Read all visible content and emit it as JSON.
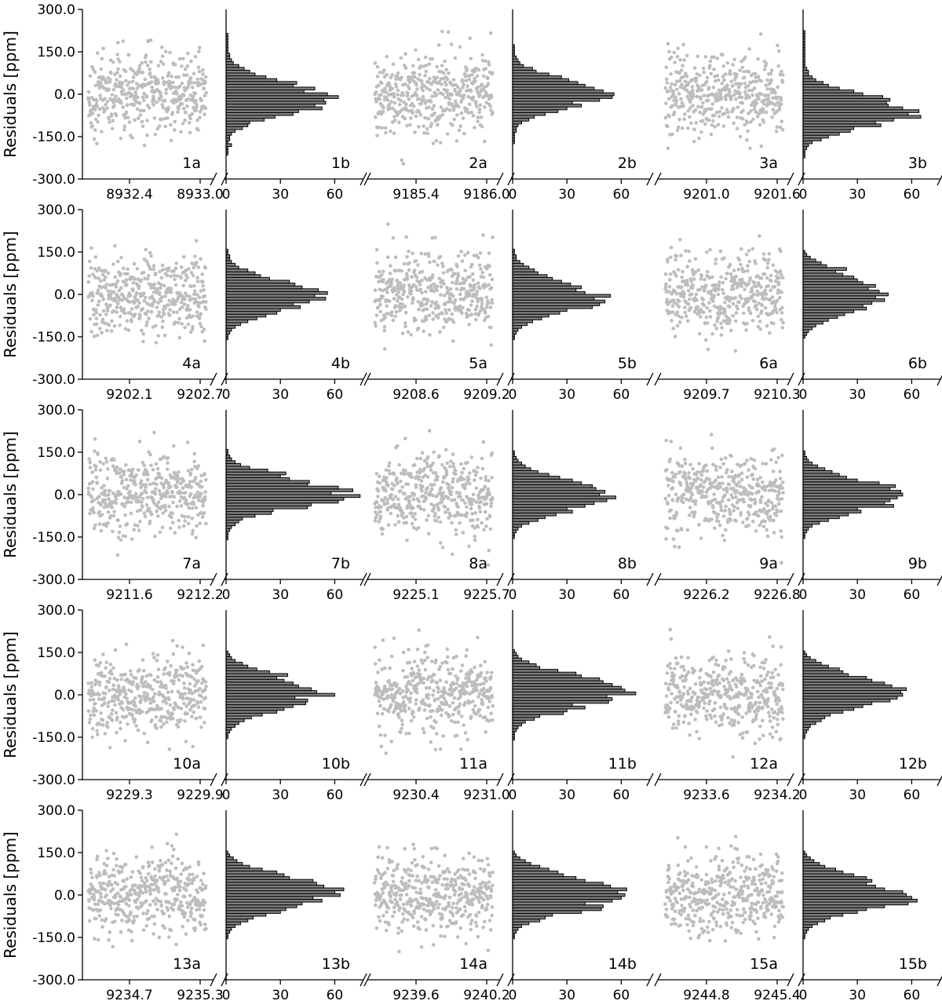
{
  "figure": {
    "ylabel": "Residuals [ppm]",
    "y_tick_labels": [
      "-300.0",
      "-150.0",
      "0.0",
      "150.0",
      "300.0"
    ],
    "hist_tick_labels": [
      "0",
      "30",
      "60"
    ],
    "colors": {
      "scatter": "#bdbdbd",
      "hist_fill": "#808080",
      "hist_edge": "#000000",
      "axis": "#000000"
    }
  },
  "chart_data": [
    {
      "type": "scatter",
      "panel": "1a",
      "ylabel": "Residuals [ppm]",
      "ylim": [
        -300,
        300
      ],
      "xlim": [
        8932.0,
        8933.1
      ],
      "x_tick_labels": [
        "8932.4",
        "8933.0"
      ],
      "x_ticks": [
        8932.4,
        8933.0
      ],
      "points": {
        "count": 420,
        "x_range": [
          8932.05,
          8933.05
        ],
        "std_ppm": 70
      }
    },
    {
      "type": "bar",
      "orientation": "horizontal",
      "panel": "1b",
      "ylim": [
        -300,
        300
      ],
      "xlim": [
        0,
        75
      ],
      "x_tick_labels": [
        "0",
        "30",
        "60"
      ],
      "x_ticks": [
        0,
        30,
        60
      ],
      "bin_width_ppm": 10,
      "counts": [
        1,
        1,
        1,
        3,
        1,
        2,
        2,
        3,
        5,
        9,
        12,
        13,
        21,
        27,
        37,
        40,
        53,
        49,
        55,
        54,
        62,
        56,
        43,
        49,
        37,
        39,
        28,
        22,
        16,
        13,
        10,
        7,
        4,
        3,
        2,
        2,
        1,
        1,
        1,
        1,
        1,
        1,
        1
      ]
    },
    {
      "type": "scatter",
      "panel": "2a",
      "ylim": [
        -300,
        300
      ],
      "xlim": [
        9185.0,
        9186.1
      ],
      "x_tick_labels": [
        "9185.4",
        "9186.0"
      ],
      "x_ticks": [
        9185.4,
        9186.0
      ],
      "points": {
        "count": 420,
        "x_range": [
          9185.05,
          9186.05
        ],
        "std_ppm": 70
      }
    },
    {
      "type": "bar",
      "orientation": "horizontal",
      "panel": "2b",
      "ylim": [
        -300,
        300
      ],
      "xlim": [
        0,
        75
      ],
      "x_tick_labels": [
        "0",
        "30",
        "60"
      ],
      "x_ticks": [
        0,
        30,
        60
      ],
      "bin_width_ppm": 10,
      "counts": [
        1,
        1,
        1,
        1,
        2,
        2,
        3,
        5,
        9,
        12,
        18,
        25,
        30,
        38,
        33,
        48,
        55,
        56,
        50,
        45,
        40,
        36,
        31,
        27,
        20,
        13,
        11,
        6,
        4,
        3,
        2,
        1,
        1,
        1,
        1
      ]
    },
    {
      "type": "scatter",
      "panel": "3a",
      "ylim": [
        -300,
        300
      ],
      "xlim": [
        9200.6,
        9201.7
      ],
      "x_tick_labels": [
        "9201.0",
        "9201.6"
      ],
      "x_ticks": [
        9201.0,
        9201.6
      ],
      "points": {
        "count": 420,
        "x_range": [
          9200.65,
          9201.65
        ],
        "std_ppm": 70
      }
    },
    {
      "type": "bar",
      "orientation": "horizontal",
      "panel": "3b",
      "ylim": [
        -300,
        300
      ],
      "xlim": [
        0,
        75
      ],
      "x_tick_labels": [
        "0",
        "30",
        "60"
      ],
      "x_ticks": [
        0,
        30,
        60
      ],
      "bin_width_ppm": 10,
      "counts": [
        1,
        1,
        1,
        2,
        3,
        5,
        10,
        14,
        20,
        26,
        28,
        43,
        40,
        50,
        65,
        58,
        64,
        55,
        47,
        46,
        48,
        44,
        33,
        28,
        20,
        14,
        11,
        7,
        5,
        3,
        3,
        2,
        1,
        1,
        1,
        1,
        1,
        1,
        1,
        1,
        1,
        1,
        1,
        1,
        1
      ]
    },
    {
      "type": "scatter",
      "panel": "4a",
      "ylim": [
        -300,
        300
      ],
      "xlim": [
        9201.7,
        9202.8
      ],
      "x_tick_labels": [
        "9202.1",
        "9202.7"
      ],
      "x_ticks": [
        9202.1,
        9202.7
      ],
      "points": {
        "count": 420,
        "x_range": [
          9201.75,
          9202.75
        ],
        "std_ppm": 70
      }
    },
    {
      "type": "bar",
      "orientation": "horizontal",
      "panel": "4b",
      "ylim": [
        -300,
        300
      ],
      "xlim": [
        0,
        75
      ],
      "x_tick_labels": [
        "0",
        "30",
        "60"
      ],
      "x_ticks": [
        0,
        30,
        60
      ],
      "bin_width_ppm": 10,
      "counts": [
        1,
        1,
        2,
        3,
        5,
        8,
        12,
        17,
        22,
        28,
        30,
        41,
        37,
        46,
        55,
        49,
        56,
        51,
        42,
        38,
        35,
        24,
        19,
        16,
        12,
        7,
        5,
        3,
        2,
        2,
        1,
        1
      ]
    },
    {
      "type": "scatter",
      "panel": "5a",
      "ylim": [
        -300,
        300
      ],
      "xlim": [
        9208.2,
        9209.3
      ],
      "x_tick_labels": [
        "9208.6",
        "9209.2"
      ],
      "x_ticks": [
        9208.6,
        9209.2
      ],
      "points": {
        "count": 420,
        "x_range": [
          9208.25,
          9209.25
        ],
        "std_ppm": 70
      }
    },
    {
      "type": "bar",
      "orientation": "horizontal",
      "panel": "5b",
      "ylim": [
        -300,
        300
      ],
      "xlim": [
        0,
        75
      ],
      "x_tick_labels": [
        "0",
        "30",
        "60"
      ],
      "x_ticks": [
        0,
        30,
        60
      ],
      "bin_width_ppm": 10,
      "counts": [
        1,
        1,
        2,
        3,
        5,
        8,
        11,
        16,
        20,
        26,
        30,
        44,
        48,
        51,
        45,
        54,
        40,
        35,
        38,
        32,
        27,
        22,
        19,
        14,
        12,
        9,
        6,
        4,
        2,
        2,
        1,
        1
      ]
    },
    {
      "type": "scatter",
      "panel": "6a",
      "ylim": [
        -300,
        300
      ],
      "xlim": [
        9209.3,
        9210.4
      ],
      "x_tick_labels": [
        "9209.7",
        "9210.3"
      ],
      "x_ticks": [
        9209.7,
        9210.3
      ],
      "points": {
        "count": 420,
        "x_range": [
          9209.35,
          9210.35
        ],
        "std_ppm": 70
      }
    },
    {
      "type": "bar",
      "orientation": "horizontal",
      "panel": "6b",
      "ylim": [
        -300,
        300
      ],
      "xlim": [
        0,
        75
      ],
      "x_tick_labels": [
        "0",
        "30",
        "60"
      ],
      "x_ticks": [
        0,
        30,
        60
      ],
      "bin_width_ppm": 10,
      "counts": [
        1,
        2,
        3,
        5,
        7,
        11,
        14,
        19,
        23,
        28,
        35,
        33,
        38,
        45,
        40,
        47,
        42,
        36,
        40,
        33,
        30,
        28,
        22,
        18,
        24,
        13,
        10,
        7,
        4,
        2,
        1
      ]
    },
    {
      "type": "scatter",
      "panel": "7a",
      "ylim": [
        -300,
        300
      ],
      "xlim": [
        9211.2,
        9212.3
      ],
      "x_tick_labels": [
        "9211.6",
        "9212.2"
      ],
      "x_ticks": [
        9211.6,
        9212.2
      ],
      "points": {
        "count": 420,
        "x_range": [
          9211.25,
          9212.25
        ],
        "std_ppm": 70
      }
    },
    {
      "type": "bar",
      "orientation": "horizontal",
      "panel": "7b",
      "ylim": [
        -300,
        300
      ],
      "xlim": [
        0,
        75
      ],
      "x_tick_labels": [
        "0",
        "30",
        "60"
      ],
      "x_ticks": [
        0,
        30,
        60
      ],
      "bin_width_ppm": 10,
      "counts": [
        1,
        1,
        1,
        2,
        3,
        5,
        7,
        9,
        16,
        25,
        26,
        45,
        47,
        62,
        65,
        74,
        58,
        70,
        62,
        45,
        46,
        35,
        30,
        33,
        23,
        13,
        8,
        5,
        3,
        2,
        1,
        1
      ]
    },
    {
      "type": "scatter",
      "panel": "8a",
      "ylim": [
        -300,
        300
      ],
      "xlim": [
        9224.7,
        9225.8
      ],
      "x_tick_labels": [
        "9225.1",
        "9225.7"
      ],
      "x_ticks": [
        9225.1,
        9225.7
      ],
      "points": {
        "count": 420,
        "x_range": [
          9224.75,
          9225.75
        ],
        "std_ppm": 70
      }
    },
    {
      "type": "bar",
      "orientation": "horizontal",
      "panel": "8b",
      "ylim": [
        -300,
        300
      ],
      "xlim": [
        0,
        75
      ],
      "x_tick_labels": [
        "0",
        "30",
        "60"
      ],
      "x_ticks": [
        0,
        30,
        60
      ],
      "bin_width_ppm": 10,
      "counts": [
        1,
        1,
        2,
        3,
        5,
        9,
        14,
        18,
        24,
        33,
        30,
        40,
        45,
        52,
        57,
        48,
        51,
        46,
        44,
        38,
        33,
        26,
        20,
        14,
        10,
        7,
        5,
        3,
        2,
        1,
        1
      ]
    },
    {
      "type": "scatter",
      "panel": "9a",
      "ylim": [
        -300,
        300
      ],
      "xlim": [
        9225.8,
        9226.9
      ],
      "x_tick_labels": [
        "9226.2",
        "9226.8"
      ],
      "x_ticks": [
        9226.2,
        9226.8
      ],
      "points": {
        "count": 420,
        "x_range": [
          9225.85,
          9226.85
        ],
        "std_ppm": 70
      }
    },
    {
      "type": "bar",
      "orientation": "horizontal",
      "panel": "9b",
      "ylim": [
        -300,
        300
      ],
      "xlim": [
        0,
        75
      ],
      "x_tick_labels": [
        "0",
        "30",
        "60"
      ],
      "x_ticks": [
        0,
        30,
        60
      ],
      "bin_width_ppm": 10,
      "counts": [
        1,
        1,
        2,
        3,
        5,
        9,
        14,
        20,
        25,
        32,
        30,
        50,
        45,
        48,
        52,
        55,
        54,
        48,
        51,
        42,
        30,
        24,
        20,
        16,
        12,
        8,
        5,
        3,
        2,
        1,
        1
      ]
    },
    {
      "type": "scatter",
      "panel": "10a",
      "ylim": [
        -300,
        300
      ],
      "xlim": [
        9228.9,
        9230.0
      ],
      "x_tick_labels": [
        "9229.3",
        "9229.9"
      ],
      "x_ticks": [
        9229.3,
        9229.9
      ],
      "points": {
        "count": 420,
        "x_range": [
          9228.95,
          9229.95
        ],
        "std_ppm": 70
      }
    },
    {
      "type": "bar",
      "orientation": "horizontal",
      "panel": "10b",
      "ylim": [
        -300,
        300
      ],
      "xlim": [
        0,
        75
      ],
      "x_tick_labels": [
        "0",
        "30",
        "60"
      ],
      "x_ticks": [
        0,
        30,
        60
      ],
      "bin_width_ppm": 10,
      "counts": [
        1,
        1,
        2,
        3,
        5,
        7,
        10,
        14,
        20,
        28,
        32,
        37,
        44,
        45,
        38,
        60,
        50,
        47,
        40,
        37,
        32,
        28,
        34,
        24,
        17,
        12,
        9,
        5,
        3,
        2,
        1
      ]
    },
    {
      "type": "scatter",
      "panel": "11a",
      "ylim": [
        -300,
        300
      ],
      "xlim": [
        9230.0,
        9231.1
      ],
      "x_tick_labels": [
        "9230.4",
        "9231.0"
      ],
      "x_ticks": [
        9230.4,
        9231.0
      ],
      "points": {
        "count": 420,
        "x_range": [
          9230.05,
          9231.05
        ],
        "std_ppm": 70
      }
    },
    {
      "type": "bar",
      "orientation": "horizontal",
      "panel": "11b",
      "ylim": [
        -300,
        300
      ],
      "xlim": [
        0,
        75
      ],
      "x_tick_labels": [
        "0",
        "30",
        "60"
      ],
      "x_ticks": [
        0,
        30,
        60
      ],
      "bin_width_ppm": 10,
      "counts": [
        1,
        1,
        1,
        2,
        3,
        5,
        7,
        12,
        15,
        28,
        30,
        40,
        33,
        53,
        55,
        52,
        68,
        62,
        60,
        55,
        50,
        48,
        38,
        35,
        25,
        15,
        13,
        9,
        5,
        3,
        2,
        1
      ]
    },
    {
      "type": "scatter",
      "panel": "12a",
      "ylim": [
        -300,
        300
      ],
      "xlim": [
        9233.2,
        9234.3
      ],
      "x_tick_labels": [
        "9233.6",
        "9234.2"
      ],
      "x_ticks": [
        9233.6,
        9234.2
      ],
      "points": {
        "count": 420,
        "x_range": [
          9233.25,
          9234.25
        ],
        "std_ppm": 70
      }
    },
    {
      "type": "bar",
      "orientation": "horizontal",
      "panel": "12b",
      "ylim": [
        -300,
        300
      ],
      "xlim": [
        0,
        75
      ],
      "x_tick_labels": [
        "0",
        "30",
        "60"
      ],
      "x_ticks": [
        0,
        30,
        60
      ],
      "bin_width_ppm": 10,
      "counts": [
        1,
        1,
        2,
        3,
        4,
        7,
        10,
        12,
        15,
        22,
        28,
        33,
        38,
        48,
        52,
        55,
        54,
        57,
        49,
        45,
        38,
        35,
        25,
        22,
        20,
        14,
        10,
        7,
        4,
        2,
        1
      ]
    },
    {
      "type": "scatter",
      "panel": "13a",
      "ylim": [
        -300,
        300
      ],
      "xlim": [
        9234.3,
        9235.4
      ],
      "x_tick_labels": [
        "9234.7",
        "9235.3"
      ],
      "x_ticks": [
        9234.7,
        9235.3
      ],
      "points": {
        "count": 420,
        "x_range": [
          9234.35,
          9235.35
        ],
        "std_ppm": 70
      }
    },
    {
      "type": "bar",
      "orientation": "horizontal",
      "panel": "13b",
      "ylim": [
        -300,
        300
      ],
      "xlim": [
        0,
        75
      ],
      "x_tick_labels": [
        "0",
        "30",
        "60"
      ],
      "x_ticks": [
        0,
        30,
        60
      ],
      "bin_width_ppm": 10,
      "counts": [
        1,
        1,
        2,
        3,
        5,
        8,
        12,
        15,
        22,
        30,
        33,
        39,
        42,
        53,
        48,
        63,
        60,
        65,
        54,
        50,
        48,
        35,
        32,
        28,
        20,
        13,
        9,
        6,
        4,
        2,
        1
      ]
    },
    {
      "type": "scatter",
      "panel": "14a",
      "ylim": [
        -300,
        300
      ],
      "xlim": [
        9239.2,
        9240.3
      ],
      "x_tick_labels": [
        "9239.6",
        "9240.2"
      ],
      "x_ticks": [
        9239.6,
        9240.2
      ],
      "points": {
        "count": 420,
        "x_range": [
          9239.25,
          9240.25
        ],
        "std_ppm": 70
      }
    },
    {
      "type": "bar",
      "orientation": "horizontal",
      "panel": "14b",
      "ylim": [
        -300,
        300
      ],
      "xlim": [
        0,
        75
      ],
      "x_tick_labels": [
        "0",
        "30",
        "60"
      ],
      "x_ticks": [
        0,
        30,
        60
      ],
      "bin_width_ppm": 10,
      "counts": [
        1,
        1,
        2,
        3,
        5,
        9,
        15,
        18,
        22,
        38,
        49,
        50,
        40,
        55,
        60,
        62,
        58,
        63,
        54,
        50,
        40,
        35,
        28,
        25,
        20,
        15,
        10,
        7,
        4,
        2,
        1
      ]
    },
    {
      "type": "scatter",
      "panel": "15a",
      "ylim": [
        -300,
        300
      ],
      "xlim": [
        9244.4,
        9245.5
      ],
      "x_tick_labels": [
        "9244.8",
        "9245.4"
      ],
      "x_ticks": [
        9244.8,
        9245.4
      ],
      "points": {
        "count": 420,
        "x_range": [
          9244.45,
          9245.45
        ],
        "std_ppm": 70
      }
    },
    {
      "type": "bar",
      "orientation": "horizontal",
      "panel": "15b",
      "ylim": [
        -300,
        300
      ],
      "xlim": [
        0,
        75
      ],
      "x_tick_labels": [
        "0",
        "30",
        "60"
      ],
      "x_ticks": [
        0,
        30,
        60
      ],
      "bin_width_ppm": 10,
      "counts": [
        1,
        1,
        2,
        3,
        5,
        8,
        12,
        15,
        22,
        30,
        35,
        45,
        58,
        63,
        60,
        57,
        55,
        45,
        40,
        35,
        38,
        35,
        28,
        22,
        18,
        12,
        9,
        6,
        4,
        2,
        1
      ]
    }
  ]
}
